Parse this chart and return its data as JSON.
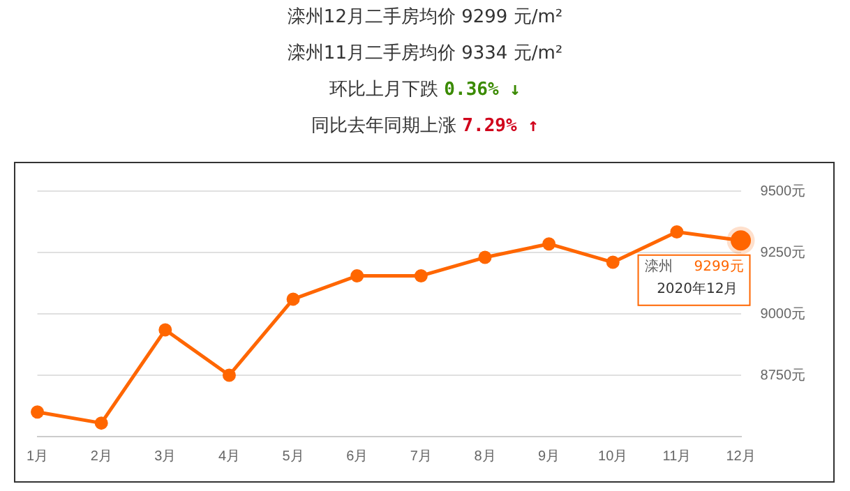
{
  "chart_data": {
    "type": "line",
    "title": "滦州12月二手房均价 9299 元/m²",
    "subtitle": "滦州11月二手房均价 9334 元/m²",
    "annotations": [
      "环比上月下跌 0.36% ↓",
      "同比去年同期上涨 7.29% ↑",
      {
        "text": "2020年12月",
        "x": "12月",
        "y": 9299
      }
    ],
    "categories": [
      "1月",
      "2月",
      "3月",
      "4月",
      "5月",
      "6月",
      "7月",
      "8月",
      "9月",
      "10月",
      "11月",
      "12月"
    ],
    "series": [
      {
        "name": "滦州",
        "color": "#ff6600",
        "values": [
          8600,
          8555,
          8935,
          8750,
          9060,
          9155,
          9155,
          9230,
          9285,
          9210,
          9334,
          9299
        ],
        "value_labels": [
          null,
          null,
          null,
          null,
          null,
          null,
          null,
          null,
          null,
          null,
          null,
          "9299元"
        ]
      }
    ],
    "ylim": [
      8500,
      9500
    ],
    "yticks": [
      {
        "value": 8500,
        "label": null
      },
      {
        "value": 8750,
        "label": "8750元"
      },
      {
        "value": 9000,
        "label": "9000元"
      },
      {
        "value": 9250,
        "label": "9250元"
      },
      {
        "value": 9500,
        "label": "9500元"
      }
    ],
    "grid": "y",
    "legend": false,
    "marker": "circle",
    "line_style": "solid"
  }
}
